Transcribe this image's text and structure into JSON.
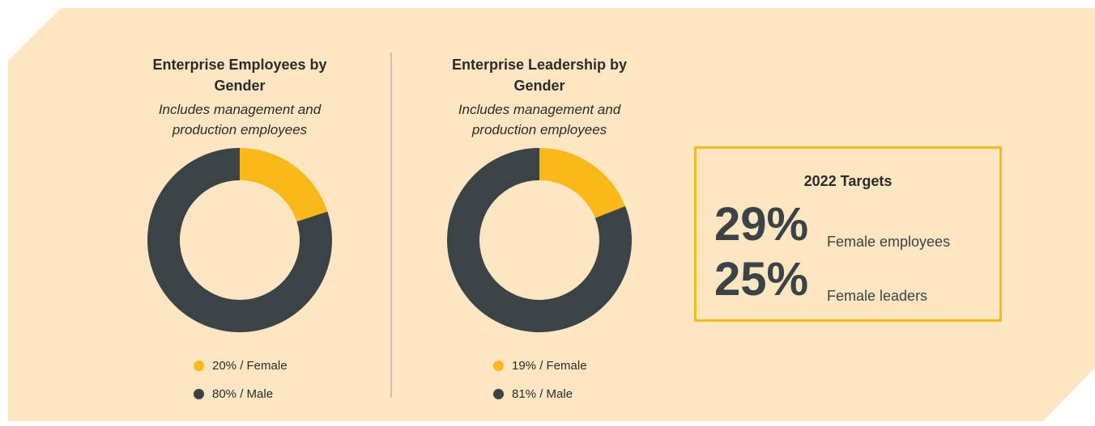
{
  "chart_data": [
    {
      "type": "donut",
      "title": "Enterprise Employees by Gender",
      "subtitle": "Includes management and production employees",
      "values": [
        20,
        80
      ],
      "value_labels": [
        "20% / Female",
        "80% / Male"
      ],
      "colors": [
        "#fbb919",
        "#3c4347"
      ]
    },
    {
      "type": "donut",
      "title": "Enterprise Leadership by Gender",
      "subtitle": "Includes management and production employees",
      "values": [
        19,
        81
      ],
      "value_labels": [
        "19% / Female",
        "81% / Male"
      ],
      "colors": [
        "#fbb919",
        "#3c4347"
      ]
    }
  ],
  "targets": {
    "title": "2022 Targets",
    "items": [
      {
        "value": "29%",
        "label": "Female employees"
      },
      {
        "value": "25%",
        "label": "Female leaders"
      }
    ]
  }
}
